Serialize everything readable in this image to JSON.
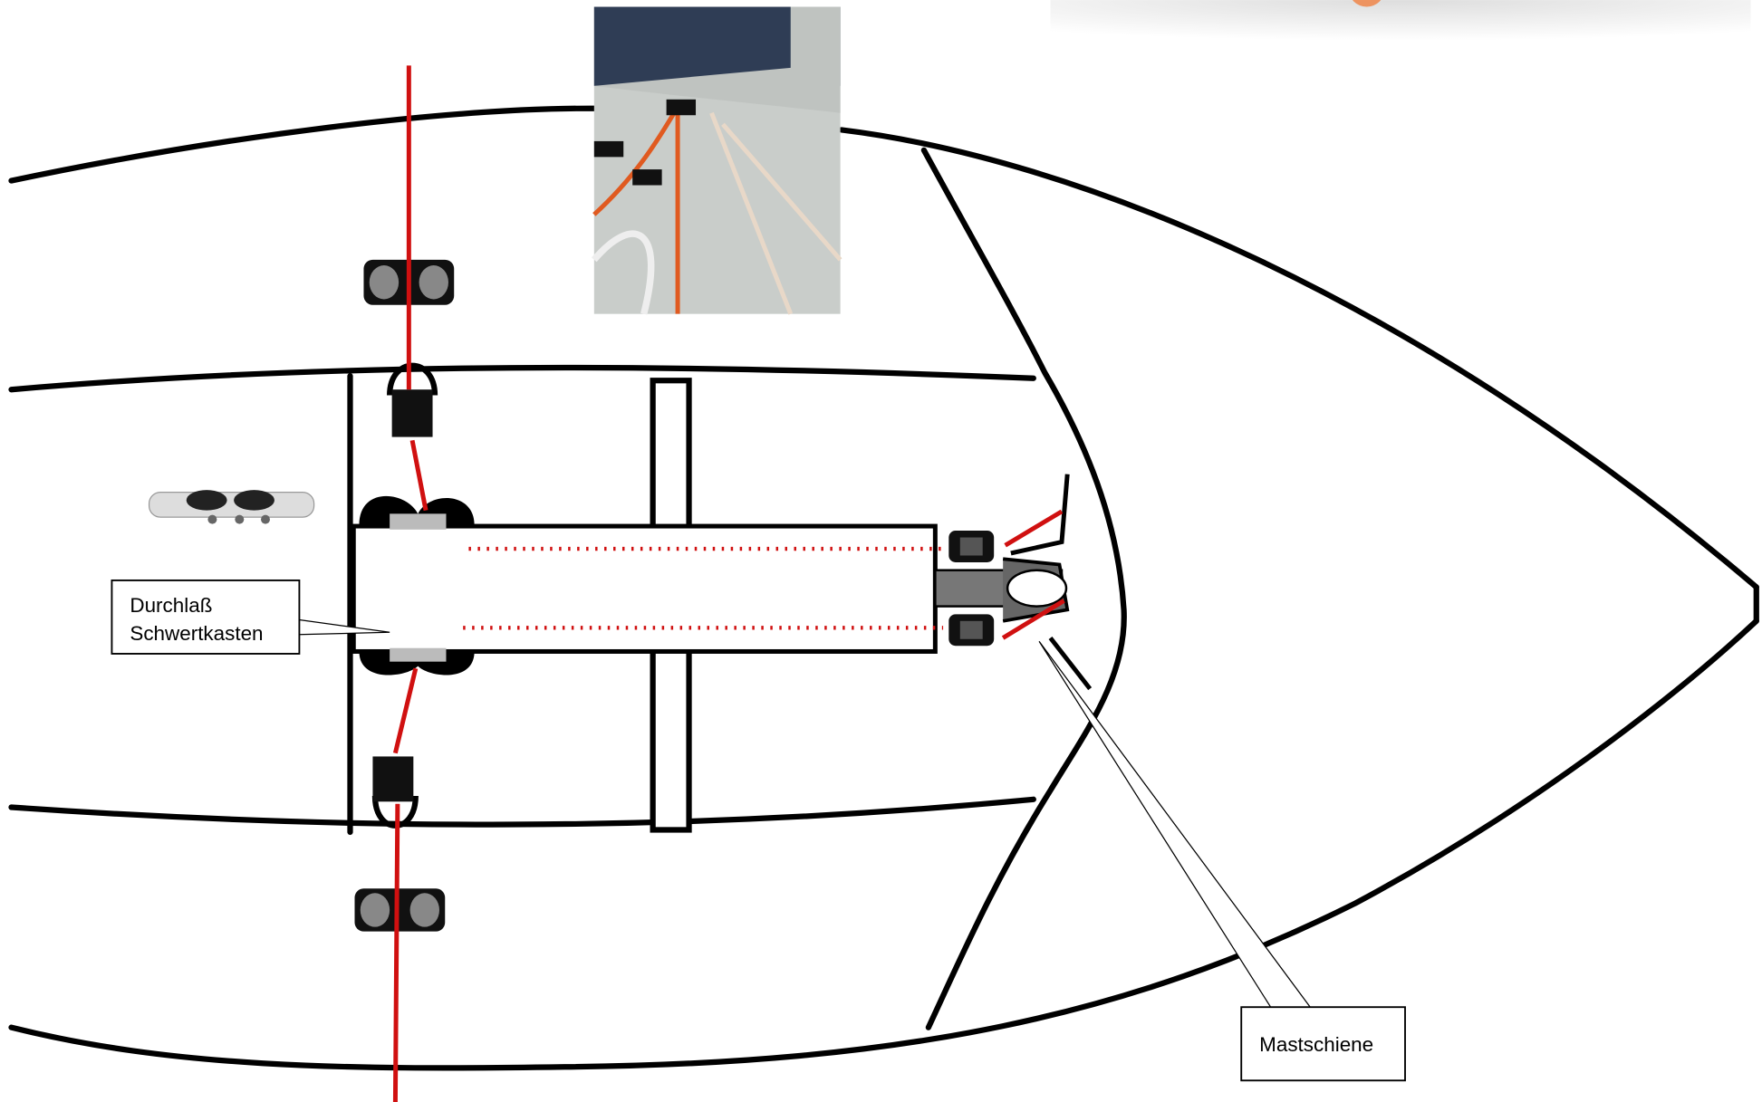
{
  "callouts": [
    {
      "lines": [
        "Durchlaß",
        "Schwertkasten"
      ]
    },
    {
      "label": "Mastschiene"
    }
  ]
}
